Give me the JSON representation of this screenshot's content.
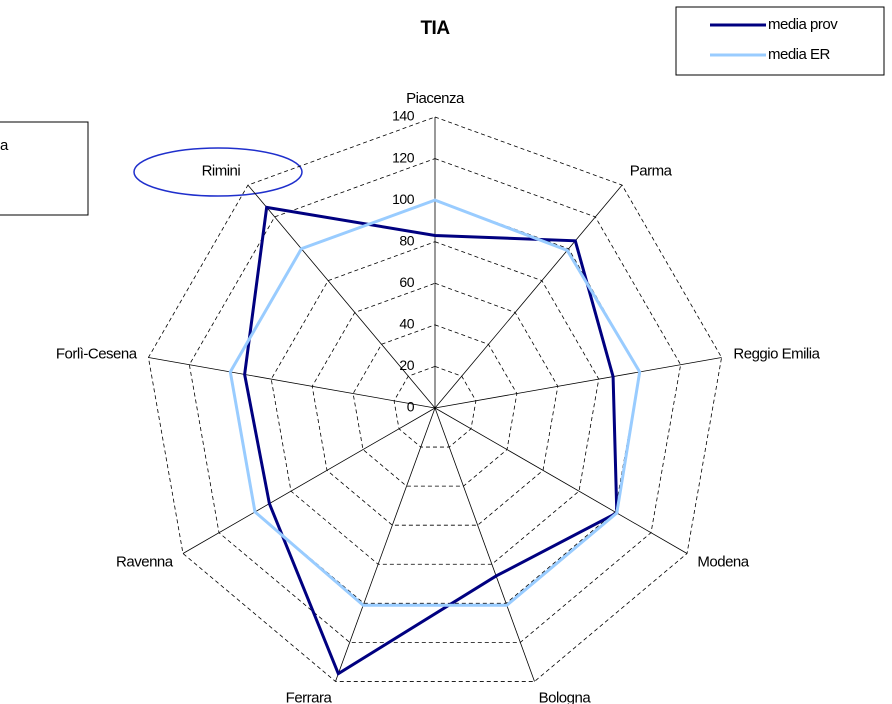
{
  "chart_data": {
    "type": "radar",
    "title": "TIA",
    "categories": [
      "Piacenza",
      "Parma",
      "Reggio Emilia",
      "Modena",
      "Bologna",
      "Ferrara",
      "Ravenna",
      "Forlì-Cesena",
      "Rimini"
    ],
    "series": [
      {
        "name": "media prov",
        "color": "#000080",
        "values": [
          83,
          105,
          87,
          101,
          86,
          136,
          92,
          93,
          126
        ]
      },
      {
        "name": "media ER",
        "color": "#99ccff",
        "values": [
          100,
          99,
          100,
          101,
          101,
          101,
          100,
          100,
          100
        ]
      }
    ],
    "ylim": [
      0,
      140
    ],
    "yticks": [
      0,
      20,
      40,
      60,
      80,
      100,
      120,
      140
    ],
    "grid": true,
    "legend": "top-right"
  },
  "clipped_box_text": "a"
}
